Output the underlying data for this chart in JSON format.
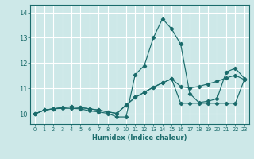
{
  "xlabel": "Humidex (Indice chaleur)",
  "background_color": "#cde8e8",
  "grid_color": "#ffffff",
  "line_color": "#1a6b6b",
  "xlim": [
    -0.5,
    23.5
  ],
  "ylim": [
    9.6,
    14.3
  ],
  "yticks": [
    10,
    11,
    12,
    13,
    14
  ],
  "xticks": [
    0,
    1,
    2,
    3,
    4,
    5,
    6,
    7,
    8,
    9,
    10,
    11,
    12,
    13,
    14,
    15,
    16,
    17,
    18,
    19,
    20,
    21,
    22,
    23
  ],
  "series": [
    [
      10.0,
      10.15,
      10.2,
      10.22,
      10.22,
      10.2,
      10.12,
      10.08,
      10.02,
      9.88,
      9.88,
      11.55,
      11.9,
      13.0,
      13.75,
      13.35,
      12.75,
      10.8,
      10.45,
      10.5,
      10.6,
      11.65,
      11.8,
      11.4
    ],
    [
      10.0,
      10.15,
      10.2,
      10.25,
      10.28,
      10.25,
      10.2,
      10.15,
      10.08,
      10.02,
      10.35,
      10.65,
      10.85,
      11.05,
      11.22,
      11.38,
      11.08,
      11.02,
      11.08,
      11.18,
      11.28,
      11.42,
      11.52,
      11.35
    ],
    [
      10.0,
      10.15,
      10.2,
      10.25,
      10.28,
      10.25,
      10.2,
      10.15,
      10.08,
      10.02,
      10.35,
      10.65,
      10.85,
      11.05,
      11.22,
      11.38,
      10.42,
      10.42,
      10.42,
      10.42,
      10.42,
      10.42,
      10.42,
      11.35
    ]
  ]
}
